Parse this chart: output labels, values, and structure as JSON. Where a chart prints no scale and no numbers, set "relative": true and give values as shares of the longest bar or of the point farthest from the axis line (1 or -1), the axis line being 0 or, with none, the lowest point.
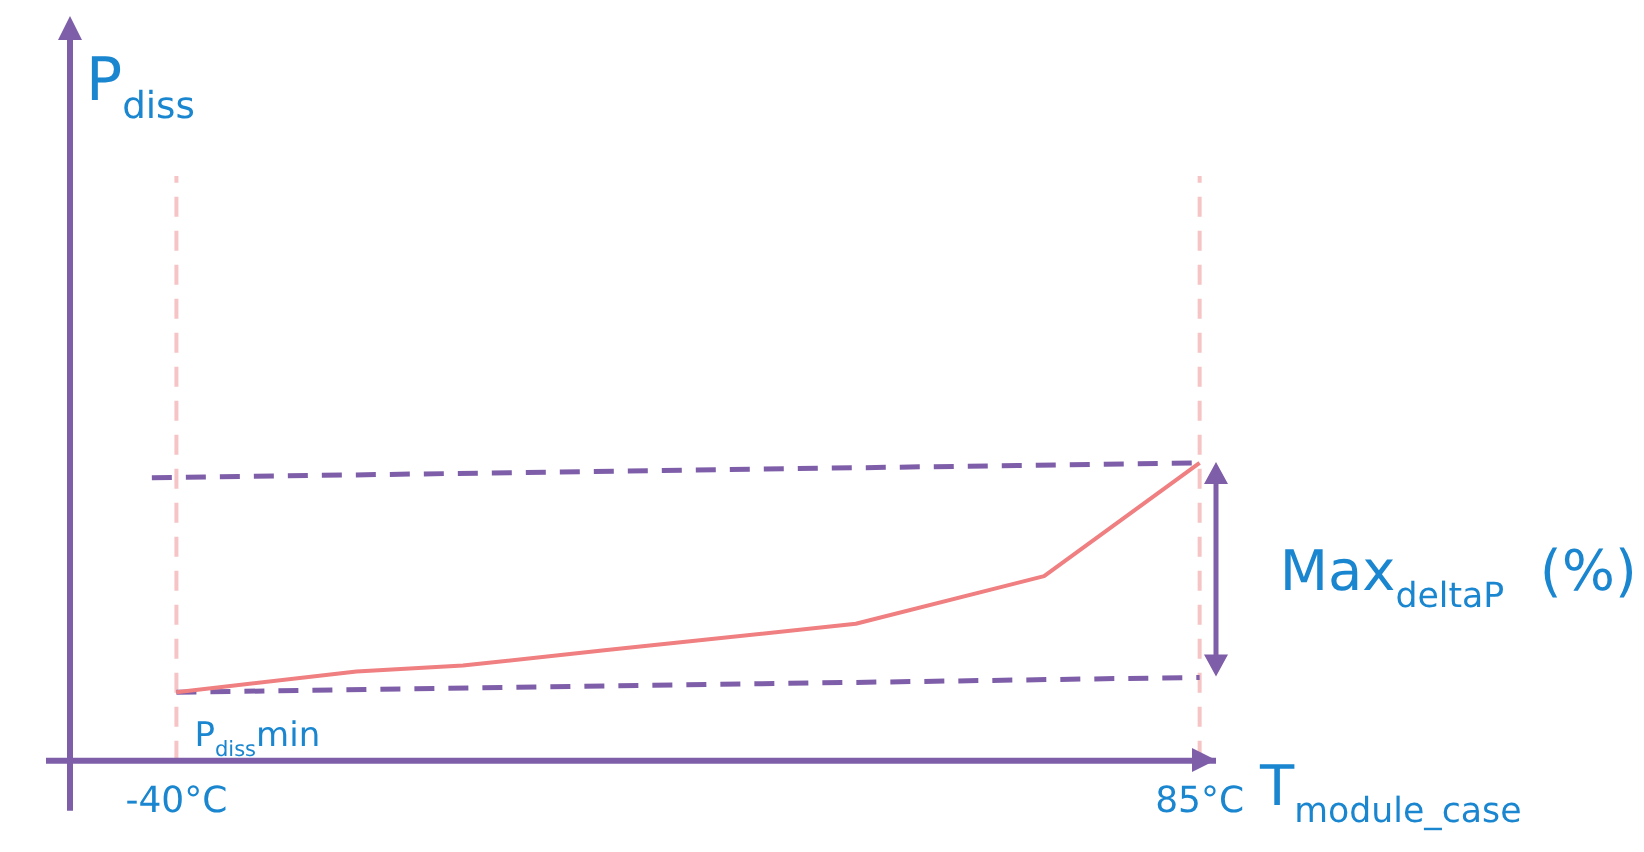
{
  "chart_data": {
    "type": "line",
    "relative": true,
    "xlabel": "T$_{module_case}$",
    "xlim": [
      -53,
      87
    ],
    "xticks": [
      {
        "value": -40,
        "label": "-40°C"
      },
      {
        "value": 85,
        "label": "85°C"
      }
    ],
    "series": [
      {
        "color": "#ef7f80",
        "x": [
          -40,
          -18,
          -5,
          12,
          43,
          66,
          85
        ],
        "values": [
          0.23,
          0.3,
          0.32,
          0.37,
          0.46,
          0.62,
          1
        ]
      },
      {
        "type": "line",
        "color": "#7e5ea8",
        "line_style": "dashed",
        "x": [
          -43,
          85
        ],
        "values": [
          0.95,
          1
        ]
      },
      {
        "type": "line",
        "color": "#7e5ea8",
        "line_style": "dashed",
        "x": [
          -40,
          85
        ],
        "values": [
          0.23,
          0.28
        ]
      }
    ],
    "ref_lines": [
      {
        "axis": "x",
        "value": -40,
        "color": "#f6c4c4",
        "line_style": "dashed"
      },
      {
        "axis": "x",
        "value": 85,
        "color": "#f6c4c4",
        "line_style": "dashed"
      }
    ],
    "annotations": [
      {
        "text": "P$_{diss}$min",
        "x": -40,
        "y": 0.23
      },
      "Max$_{deltaP}$  (%)",
      "P$_{diss}$"
    ],
    "marker": "none",
    "grid": false,
    "legend": false
  }
}
